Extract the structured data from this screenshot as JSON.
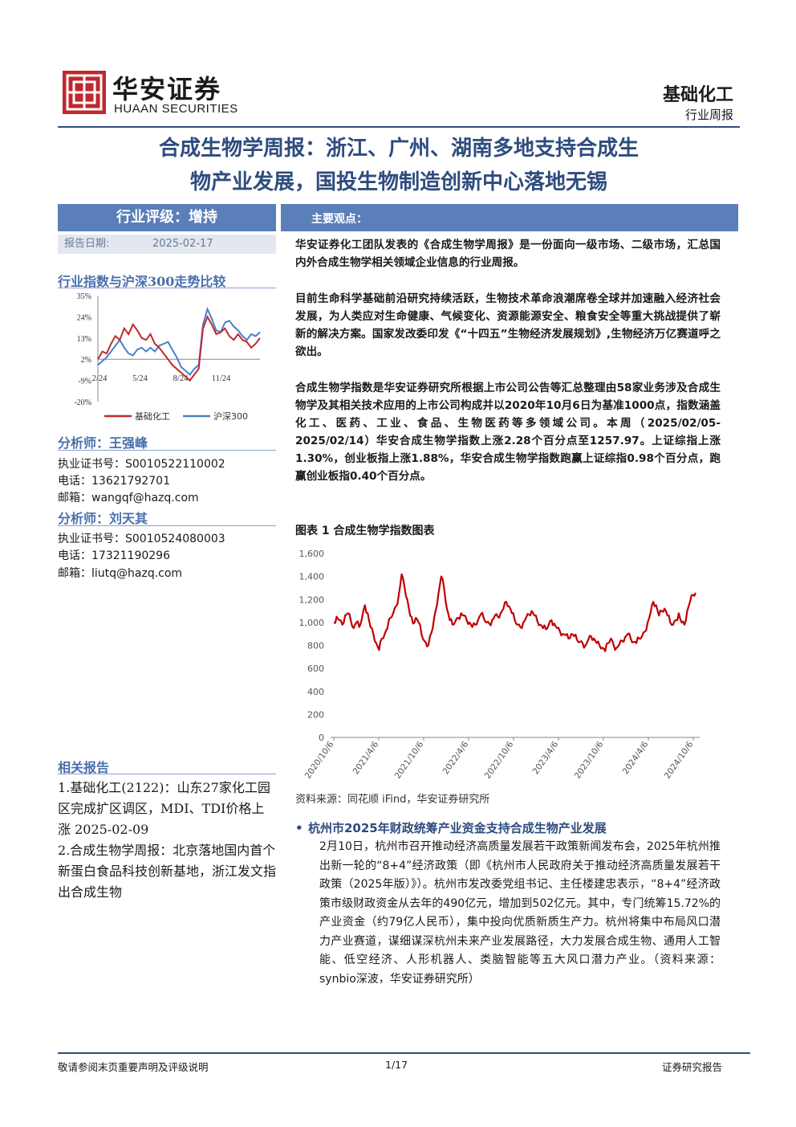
{
  "header": {
    "logo_cn": "华安证券",
    "logo_en": "HUAAN SECURITIES",
    "sector": "基础化工",
    "report_type": "行业周报"
  },
  "title": {
    "line1": "合成生物学周报：浙江、广州、湖南多地支持合成生",
    "line2": "物产业发展，国投生物制造创新中心落地无锡"
  },
  "sidebar": {
    "rating": "行业评级：增持",
    "date_label": "报告日期:",
    "date_value": "2025-02-17",
    "trend_title": "行业指数与沪深300走势比较",
    "analysts": [
      {
        "heading": "分析师：王强峰",
        "cert": "执业证书号：S0010522110002",
        "phone": "电话：13621792701",
        "email": "邮箱：wangqf@hazq.com"
      },
      {
        "heading": "分析师：刘天其",
        "cert": "执业证书号：S0010524080003",
        "phone": "电话：17321190296",
        "email": "邮箱：liutq@hazq.com"
      }
    ],
    "related_title": "相关报告",
    "related": [
      "1.基础化工(2122)：山东27家化工园区完成扩区调区，MDI、TDI价格上涨 2025-02-09",
      "2.合成生物学周报：北京落地国内首个新蛋白食品科技创新基地，浙江发文指出合成生物"
    ]
  },
  "main": {
    "section_label": "主要观点：",
    "p1": "华安证券化工团队发表的《合成生物学周报》是一份面向一级市场、二级市场，汇总国内外合成生物学相关领域企业信息的行业周报。",
    "p2": "目前生命科学基础前沿研究持续活跃，生物技术革命浪潮席卷全球并加速融入经济社会发展，为人类应对生命健康、气候变化、资源能源安全、粮食安全等重大挑战提供了崭新的解决方案。国家发改委印发《“十四五”生物经济发展规划》,生物经济万亿赛道呼之欲出。",
    "p3": "合成生物学指数是华安证券研究所根据上市公司公告等汇总整理由58家业务涉及合成生物学及其相关技术应用的上市公司构成并以2020年10月6日为基准1000点，指数涵盖化工、医药、工业、食品、生物医药等多领域公司。本周（2025/02/05-2025/02/14）华安合成生物学指数上涨2.28个百分点至1257.97。上证综指上涨1.30%，创业板指上涨1.88%，华安合成生物学指数跑赢上证综指0.98个百分点，跑赢创业板指0.40个百分点。",
    "fig_title": "图表 1 合成生物学指数图表",
    "source": "资料来源：同花顺 iFind，华安证券研究所",
    "bullet_title": "杭州市2025年财政统筹产业资金支持合成生物产业发展",
    "bullet_body": "2月10日，杭州市召开推动经济高质量发展若干政策新闻发布会，2025年杭州推出新一轮的“8+4”经济政策（即《杭州市人民政府关于推动经济高质量发展若干政策（2025年版）》）。杭州市发改委党组书记、主任楼建忠表示，“8+4”经济政策市级财政资金从去年的490亿元，增加到502亿元。其中，专门统筹15.72%的产业资金（约79亿人民币），集中投向优质新质生产力。杭州将集中布局风口潜力产业赛道，谋细谋深杭州未来产业发展路径，大力发展合成生物、通用人工智能、低空经济、人形机器人、类脑智能等五大风口潜力产业。（资料来源：synbio深波，华安证券研究所）"
  },
  "footer": {
    "left": "敬请参阅末页重要声明及评级说明",
    "center": "1/17",
    "right": "证券研究报告"
  },
  "chart_data": [
    {
      "type": "line",
      "title": "行业指数与沪深300走势比较",
      "x_ticks": [
        "2/24",
        "5/24",
        "8/24",
        "11/24"
      ],
      "y_ticks": [
        "35%",
        "24%",
        "13%",
        "2%",
        "-9%",
        "-20%"
      ],
      "ylim": [
        -20,
        35
      ],
      "legend": "bottom",
      "series": [
        {
          "name": "基础化工",
          "color": "#c0282e",
          "values": [
            2,
            6,
            5,
            10,
            14,
            12,
            18,
            15,
            20,
            17,
            13,
            12,
            15,
            10,
            8,
            5,
            2,
            -1,
            -3,
            -5,
            -7,
            -9,
            -6,
            -3,
            18,
            24,
            20,
            15,
            16,
            18,
            14,
            12,
            15,
            12,
            11,
            8,
            10,
            13
          ]
        },
        {
          "name": "沪深300",
          "color": "#4a7fc8",
          "values": [
            -1,
            1,
            3,
            6,
            9,
            12,
            8,
            5,
            4,
            7,
            8,
            6,
            8,
            6,
            9,
            10,
            11,
            7,
            3,
            -2,
            -4,
            -6,
            -3,
            -1,
            20,
            28,
            23,
            17,
            16,
            21,
            22,
            19,
            17,
            14,
            12,
            15,
            14,
            16
          ]
        }
      ]
    },
    {
      "type": "line",
      "title": "图表 1 合成生物学指数图表",
      "x_ticks": [
        "2020/10/6",
        "2021/4/6",
        "2021/10/6",
        "2022/4/6",
        "2022/10/6",
        "2023/4/6",
        "2023/10/6",
        "2024/4/6",
        "2024/10/6"
      ],
      "y_ticks": [
        0,
        200,
        400,
        600,
        800,
        1000,
        1200,
        1400,
        1600
      ],
      "ylim": [
        0,
        1600
      ],
      "series": [
        {
          "name": "",
          "color": "#c00000",
          "values": [
            1000,
            1050,
            1020,
            980,
            1060,
            1080,
            1020,
            950,
            1000,
            960,
            1040,
            1150,
            1080,
            960,
            900,
            820,
            760,
            860,
            900,
            950,
            1040,
            1080,
            1140,
            1240,
            1420,
            1310,
            1200,
            1060,
            990,
            1040,
            1000,
            900,
            840,
            790,
            880,
            950,
            1100,
            1250,
            1400,
            1300,
            1120,
            1020,
            980,
            1010,
            1040,
            1080,
            1060,
            1020,
            1000,
            960,
            980,
            1020,
            1070,
            1040,
            1000,
            990,
            1020,
            1060,
            1050,
            1080,
            1120,
            1180,
            1140,
            1080,
            1020,
            980,
            960,
            1000,
            1040,
            1070,
            1100,
            1060,
            1010,
            980,
            950,
            940,
            980,
            1020,
            990,
            950,
            920,
            900,
            890,
            860,
            900,
            880,
            850,
            830,
            820,
            800,
            850,
            880,
            860,
            820,
            800,
            780,
            750,
            820,
            860,
            800,
            780,
            810,
            840,
            870,
            900,
            860,
            830,
            820,
            860,
            880,
            920,
            1000,
            1080,
            1180,
            1150,
            1060,
            1100,
            1120,
            1060,
            1000,
            980,
            1020,
            1080,
            1000,
            980,
            1100,
            1180,
            1240,
            1258
          ]
        }
      ]
    }
  ]
}
